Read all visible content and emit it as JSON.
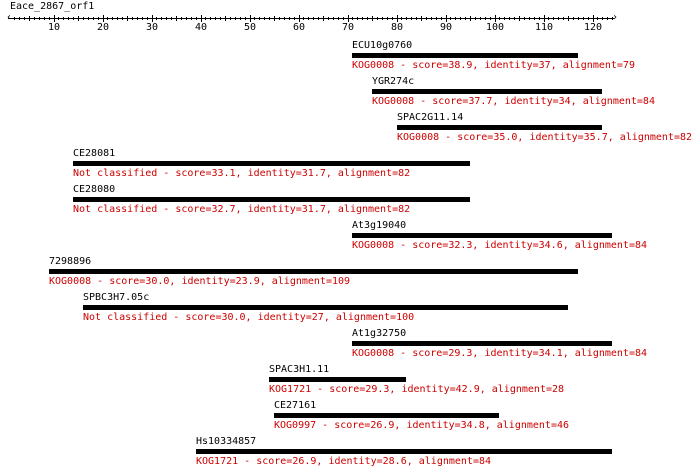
{
  "query": {
    "name": "Eace_2867_orf1",
    "axis": {
      "ticks": [
        10,
        20,
        30,
        40,
        50,
        60,
        70,
        80,
        90,
        100,
        110,
        120
      ]
    }
  },
  "hits": [
    {
      "name": "ECU10g0760",
      "start": 71,
      "end": 117,
      "label": "KOG0008 - score=38.9, identity=37, alignment=79"
    },
    {
      "name": "YGR274c",
      "start": 75,
      "end": 122,
      "label": "KOG0008 - score=37.7, identity=34, alignment=84"
    },
    {
      "name": "SPAC2G11.14",
      "start": 80,
      "end": 122,
      "label": "KOG0008 - score=35.0, identity=35.7, alignment=82"
    },
    {
      "name": "CE28081",
      "start": 14,
      "end": 95,
      "label": "Not classified - score=33.1, identity=31.7, alignment=82"
    },
    {
      "name": "CE28080",
      "start": 14,
      "end": 95,
      "label": "Not classified - score=32.7, identity=31.7, alignment=82"
    },
    {
      "name": "At3g19040",
      "start": 71,
      "end": 124,
      "label": "KOG0008 - score=32.3, identity=34.6, alignment=84"
    },
    {
      "name": "7298896",
      "start": 9,
      "end": 117,
      "label": "KOG0008 - score=30.0, identity=23.9, alignment=109"
    },
    {
      "name": "SPBC3H7.05c",
      "start": 16,
      "end": 115,
      "label": "Not classified - score=30.0, identity=27, alignment=100"
    },
    {
      "name": "At1g32750",
      "start": 71,
      "end": 124,
      "label": "KOG0008 - score=29.3, identity=34.1, alignment=84"
    },
    {
      "name": "SPAC3H1.11",
      "start": 54,
      "end": 82,
      "label": "KOG1721 - score=29.3, identity=42.9, alignment=28"
    },
    {
      "name": "CE27161",
      "start": 55,
      "end": 101,
      "label": "KOG0997 - score=26.9, identity=34.8, alignment=46"
    },
    {
      "name": "Hs10334857",
      "start": 39,
      "end": 124,
      "label": "KOG1721 - score=26.9, identity=28.6, alignment=84"
    }
  ]
}
